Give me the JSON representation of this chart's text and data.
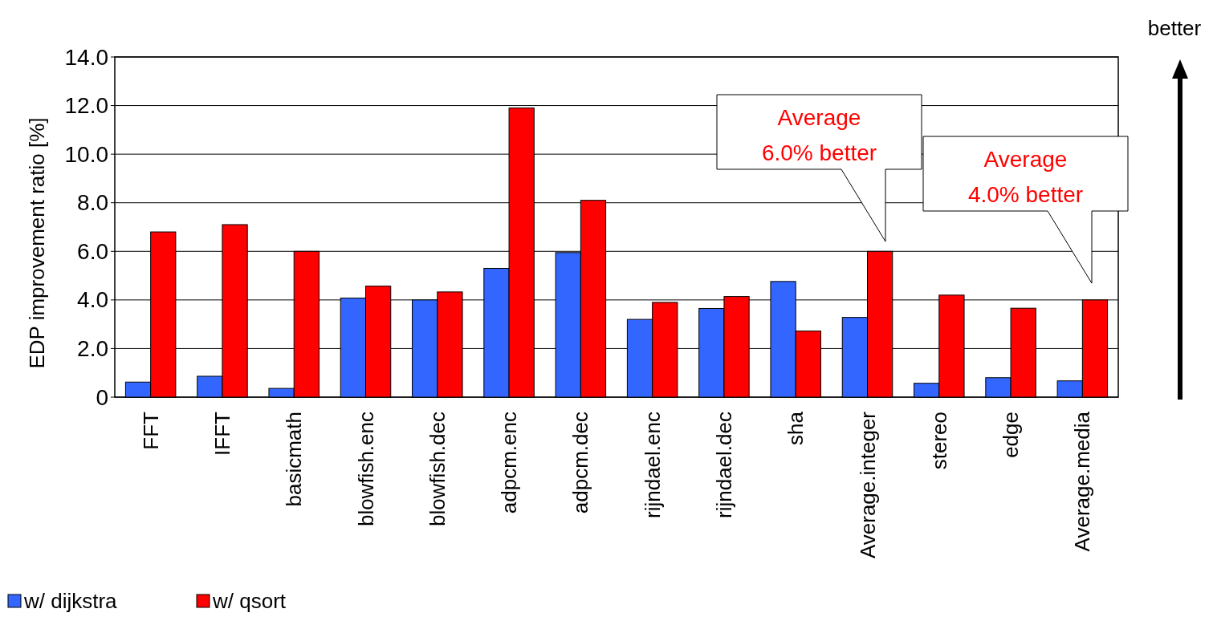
{
  "chart_data": {
    "type": "bar",
    "ylabel": "EDP improvement ratio [%]",
    "categories": [
      "FFT",
      "IFFT",
      "basicmath",
      "blowfish.enc",
      "blowfish.dec",
      "adpcm.enc",
      "adpcm.dec",
      "rijndael.enc",
      "rijndael.dec",
      "sha",
      "Average.integer",
      "stereo",
      "edge",
      "Average.media"
    ],
    "series": [
      {
        "name": "w/ dijkstra",
        "color": "#3366ff",
        "values": [
          0.62,
          0.86,
          0.36,
          4.08,
          4.0,
          5.3,
          5.95,
          3.2,
          3.65,
          4.76,
          3.28,
          0.57,
          0.8,
          0.67
        ]
      },
      {
        "name": "w/ qsort",
        "color": "#ff0000",
        "values": [
          6.8,
          7.1,
          6.0,
          4.57,
          4.33,
          11.9,
          8.1,
          3.9,
          4.14,
          2.72,
          6.0,
          4.2,
          3.66,
          4.0
        ]
      }
    ],
    "ylim": [
      0,
      14
    ],
    "yticks": [
      {
        "value": 0,
        "label": "0"
      },
      {
        "value": 2,
        "label": "2.0"
      },
      {
        "value": 4,
        "label": "4.0"
      },
      {
        "value": 6,
        "label": "6.0"
      },
      {
        "value": 8,
        "label": "8.0"
      },
      {
        "value": 10,
        "label": "10.0"
      },
      {
        "value": 12,
        "label": "12.0"
      },
      {
        "value": 14,
        "label": "14.0"
      }
    ],
    "grid": "y",
    "legend": "bottom left",
    "annotations": [
      "Average\n6.0% better",
      "Average\n4.0% better",
      "better"
    ]
  }
}
